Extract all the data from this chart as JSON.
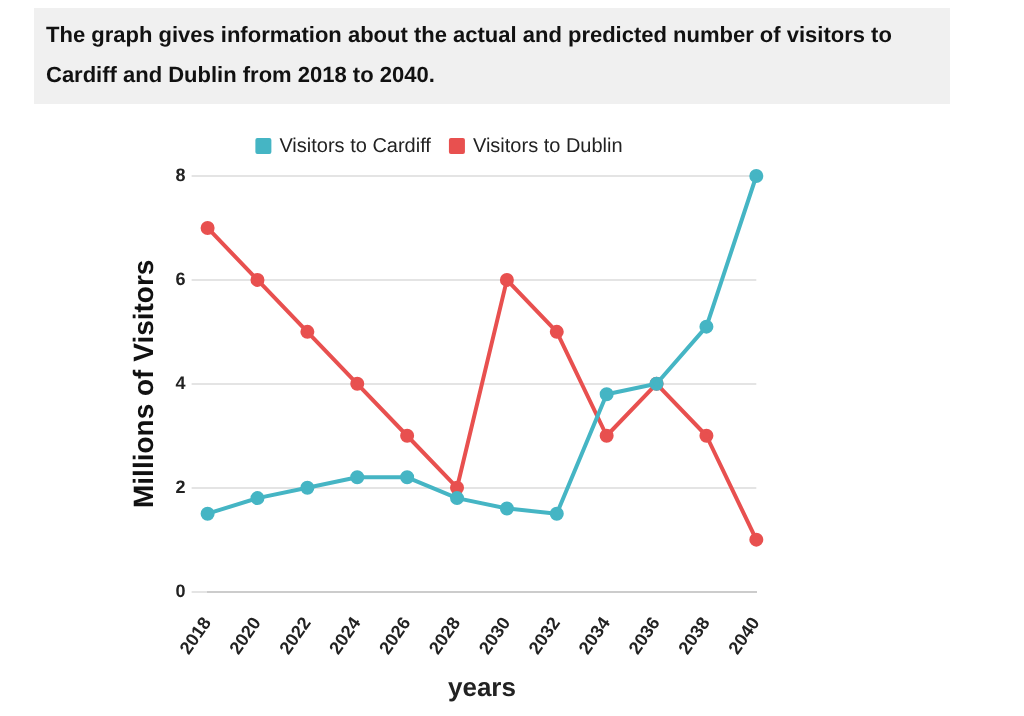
{
  "chart_data": {
    "type": "line",
    "title": "The graph gives information about the actual and predicted number of visitors to Cardiff and Dublin from 2018 to 2040.",
    "xlabel": "years",
    "ylabel": "Millions of Visitors",
    "categories": [
      "2018",
      "2020",
      "2022",
      "2024",
      "2026",
      "2028",
      "2030",
      "2032",
      "2034",
      "2036",
      "2038",
      "2040"
    ],
    "series": [
      {
        "name": "Visitors to Cardiff",
        "color": "#45b5c4",
        "values": [
          1.5,
          1.8,
          2,
          2.2,
          2.2,
          1.8,
          1.6,
          1.5,
          3.8,
          4,
          5.1,
          8
        ]
      },
      {
        "name": "Visitors to Dublin",
        "color": "#e8504f",
        "values": [
          7,
          6,
          5,
          4,
          3,
          2,
          6,
          5,
          3,
          4,
          3,
          1
        ]
      }
    ],
    "ylim": [
      0,
      8
    ],
    "yticks": [
      0,
      2,
      4,
      6,
      8
    ],
    "grid": "y",
    "legend": "top",
    "marker": "circle",
    "line_style": "solid"
  }
}
